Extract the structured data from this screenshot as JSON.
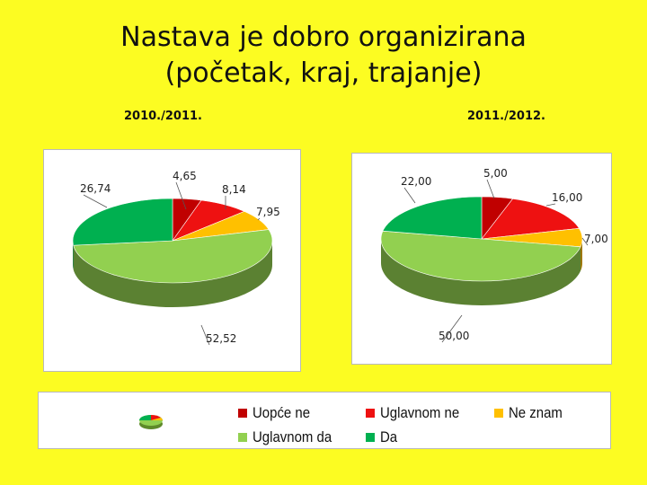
{
  "slide": {
    "title_line1": "Nastava je dobro organizirana",
    "title_line2": "(početak, kraj, trajanje)"
  },
  "chart_data": [
    {
      "type": "pie",
      "title": "2010./2011.",
      "style": "3d",
      "categories": [
        "Uopće ne",
        "Uglavnom ne",
        "Ne znam",
        "Uglavnom da",
        "Da"
      ],
      "values": [
        4.65,
        8.14,
        7.95,
        52.52,
        26.74
      ],
      "value_labels": [
        "4,65",
        "8,14",
        "7,95",
        "52,52",
        "26,74"
      ],
      "colors": [
        "#c00000",
        "#ee1111",
        "#ffc000",
        "#92d050",
        "#00b050"
      ]
    },
    {
      "type": "pie",
      "title": "2011./2012.",
      "style": "3d",
      "categories": [
        "Uopće ne",
        "Uglavnom ne",
        "Ne znam",
        "Uglavnom da",
        "Da"
      ],
      "values": [
        5.0,
        16.0,
        7.0,
        50.0,
        22.0
      ],
      "value_labels": [
        "5,00",
        "16,00",
        "7,00",
        "50,00",
        "22,00"
      ],
      "colors": [
        "#c00000",
        "#ee1111",
        "#ffc000",
        "#92d050",
        "#00b050"
      ]
    }
  ],
  "legend": {
    "placement": "bottom",
    "items": [
      {
        "label": "Uopće ne",
        "color": "#c00000"
      },
      {
        "label": "Uglavnom ne",
        "color": "#ee1111"
      },
      {
        "label": "Ne znam",
        "color": "#ffc000"
      },
      {
        "label": "Uglavnom da",
        "color": "#92d050"
      },
      {
        "label": "Da",
        "color": "#00b050"
      }
    ]
  },
  "colors": {
    "background": "#fcfc22"
  }
}
